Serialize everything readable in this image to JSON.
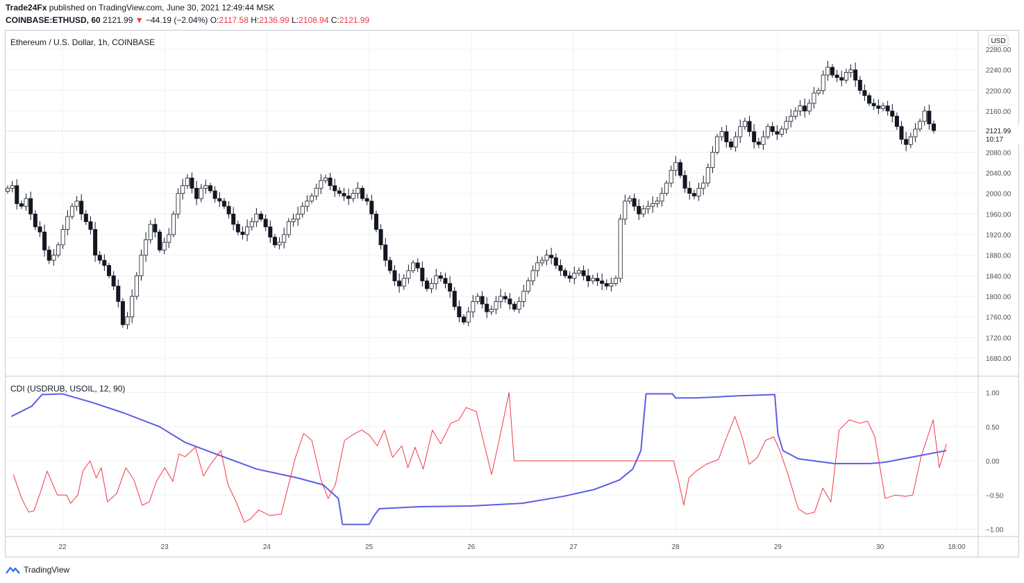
{
  "header": {
    "author": "Trade24Fx",
    "published_text": " published on TradingView.com, June 30, 2021 12:49:44 MSK",
    "symbol": "COINBASE:ETHUSD, 60",
    "last": "2121.99",
    "down_arrow": "▼",
    "change": "−44.19 (−2.04%)",
    "o_label": "O:",
    "o_value": "2117.58",
    "h_label": "H:",
    "h_value": "2136.99",
    "l_label": "L:",
    "l_value": "2108.94",
    "c_label": "C:",
    "c_value": "2121.99"
  },
  "price_pane": {
    "legend": "Ethereum / U.S. Dollar, 1h, COINBASE",
    "currency_badge": "USD",
    "last_price_label": "2121.99",
    "countdown": "10:17"
  },
  "indicator_pane": {
    "legend": "CDI (USDRUB, USOIL, 12, 90)"
  },
  "footer": {
    "brand": "TradingView"
  },
  "colors": {
    "up_candle": "#ffffff",
    "down_candle": "#131722",
    "cdi_slow": "#5b5ce6",
    "cdi_fast": "#f23645",
    "grid": "#eef0f4",
    "axis_text": "#4a4e59"
  },
  "chart_data": [
    {
      "type": "candlestick",
      "title": "Ethereum / U.S. Dollar, 1h, COINBASE",
      "y_unit": "USD",
      "ylim": [
        1650,
        2290
      ],
      "y_ticks": [
        1680,
        1720,
        1760,
        1800,
        1840,
        1880,
        1920,
        1960,
        2000,
        2040,
        2080,
        2120,
        2160,
        2200,
        2240,
        2280
      ],
      "x_ticks": [
        "22",
        "23",
        "24",
        "25",
        "26",
        "27",
        "28",
        "29",
        "30",
        "18:00"
      ],
      "close_path_hourly": [
        2010,
        2015,
        1980,
        1975,
        1990,
        1960,
        1935,
        1925,
        1890,
        1870,
        1880,
        1900,
        1930,
        1955,
        1975,
        1985,
        1960,
        1945,
        1930,
        1880,
        1870,
        1860,
        1840,
        1820,
        1790,
        1745,
        1760,
        1800,
        1840,
        1880,
        1910,
        1940,
        1925,
        1890,
        1905,
        1920,
        1960,
        2000,
        2015,
        2030,
        2010,
        1990,
        2010,
        2015,
        2005,
        1990,
        1985,
        1975,
        1960,
        1940,
        1925,
        1920,
        1935,
        1945,
        1960,
        1950,
        1935,
        1915,
        1900,
        1905,
        1920,
        1945,
        1950,
        1960,
        1975,
        1985,
        1995,
        2010,
        2025,
        2030,
        2015,
        2005,
        2000,
        1995,
        1990,
        2000,
        2010,
        1990,
        1985,
        1960,
        1930,
        1900,
        1870,
        1850,
        1830,
        1820,
        1835,
        1850,
        1865,
        1855,
        1830,
        1815,
        1825,
        1840,
        1835,
        1825,
        1810,
        1780,
        1760,
        1750,
        1770,
        1790,
        1800,
        1785,
        1770,
        1775,
        1790,
        1800,
        1795,
        1785,
        1775,
        1790,
        1810,
        1830,
        1850,
        1865,
        1870,
        1880,
        1875,
        1860,
        1850,
        1840,
        1835,
        1845,
        1850,
        1840,
        1830,
        1835,
        1830,
        1825,
        1820,
        1825,
        1835,
        1950,
        1985,
        1990,
        1975,
        1960,
        1970,
        1975,
        1980,
        1985,
        2000,
        2020,
        2045,
        2060,
        2035,
        2010,
        2000,
        1995,
        2010,
        2020,
        2050,
        2080,
        2110,
        2120,
        2100,
        2090,
        2110,
        2130,
        2140,
        2120,
        2100,
        2095,
        2110,
        2130,
        2120,
        2115,
        2125,
        2140,
        2150,
        2160,
        2170,
        2160,
        2175,
        2195,
        2200,
        2230,
        2245,
        2230,
        2225,
        2220,
        2235,
        2240,
        2220,
        2200,
        2190,
        2175,
        2170,
        2165,
        2170,
        2160,
        2150,
        2130,
        2105,
        2095,
        2110,
        2125,
        2140,
        2160,
        2135,
        2121.99
      ],
      "last": 2121.99
    },
    {
      "type": "line",
      "title": "CDI (USDRUB, USOIL, 12, 90)",
      "ylim": [
        -1.1,
        1.1
      ],
      "y_ticks": [
        1.0,
        0.5,
        0.0,
        -0.5,
        -1.0
      ],
      "y_tick_labels": [
        "1.00",
        "0.50",
        "0.00",
        "−0.50",
        "−1.00"
      ],
      "x_ticks": [
        "22",
        "23",
        "24",
        "25",
        "26",
        "27",
        "28",
        "29",
        "30",
        "18:00"
      ],
      "series": [
        {
          "color": "#5b5ce6",
          "points": [
            [
              21.5,
              0.65
            ],
            [
              21.7,
              0.8
            ],
            [
              21.8,
              0.97
            ],
            [
              22.0,
              0.98
            ],
            [
              22.3,
              0.85
            ],
            [
              22.6,
              0.7
            ],
            [
              22.95,
              0.5
            ],
            [
              23.2,
              0.27
            ],
            [
              23.5,
              0.1
            ],
            [
              23.9,
              -0.12
            ],
            [
              24.3,
              -0.25
            ],
            [
              24.55,
              -0.35
            ],
            [
              24.7,
              -0.55
            ],
            [
              24.74,
              -0.93
            ],
            [
              25.0,
              -0.93
            ],
            [
              25.05,
              -0.8
            ],
            [
              25.1,
              -0.7
            ],
            [
              25.5,
              -0.67
            ],
            [
              26.0,
              -0.66
            ],
            [
              26.5,
              -0.62
            ],
            [
              26.9,
              -0.52
            ],
            [
              27.2,
              -0.42
            ],
            [
              27.45,
              -0.28
            ],
            [
              27.58,
              -0.12
            ],
            [
              27.66,
              0.15
            ],
            [
              27.71,
              0.98
            ],
            [
              27.97,
              0.98
            ],
            [
              28.0,
              0.92
            ],
            [
              28.2,
              0.92
            ],
            [
              28.6,
              0.95
            ],
            [
              28.97,
              0.97
            ],
            [
              29.0,
              0.4
            ],
            [
              29.05,
              0.15
            ],
            [
              29.2,
              0.03
            ],
            [
              29.55,
              -0.04
            ],
            [
              29.9,
              -0.04
            ],
            [
              30.05,
              -0.02
            ],
            [
              30.4,
              0.08
            ],
            [
              30.65,
              0.15
            ]
          ]
        },
        {
          "color": "#f23645",
          "points": [
            [
              21.52,
              -0.2
            ],
            [
              21.6,
              -0.55
            ],
            [
              21.67,
              -0.75
            ],
            [
              21.72,
              -0.73
            ],
            [
              21.78,
              -0.48
            ],
            [
              21.85,
              -0.15
            ],
            [
              21.95,
              -0.5
            ],
            [
              22.04,
              -0.5
            ],
            [
              22.08,
              -0.62
            ],
            [
              22.15,
              -0.5
            ],
            [
              22.2,
              -0.15
            ],
            [
              22.27,
              0.0
            ],
            [
              22.33,
              -0.25
            ],
            [
              22.38,
              -0.1
            ],
            [
              22.44,
              -0.6
            ],
            [
              22.53,
              -0.48
            ],
            [
              22.62,
              -0.1
            ],
            [
              22.7,
              -0.28
            ],
            [
              22.78,
              -0.65
            ],
            [
              22.85,
              -0.6
            ],
            [
              22.92,
              -0.3
            ],
            [
              23.0,
              -0.1
            ],
            [
              23.08,
              -0.3
            ],
            [
              23.14,
              0.1
            ],
            [
              23.2,
              0.06
            ],
            [
              23.3,
              0.2
            ],
            [
              23.38,
              -0.22
            ],
            [
              23.45,
              -0.05
            ],
            [
              23.55,
              0.15
            ],
            [
              23.62,
              -0.35
            ],
            [
              23.7,
              -0.6
            ],
            [
              23.78,
              -0.9
            ],
            [
              23.84,
              -0.85
            ],
            [
              23.92,
              -0.72
            ],
            [
              24.03,
              -0.8
            ],
            [
              24.14,
              -0.78
            ],
            [
              24.28,
              0.05
            ],
            [
              24.36,
              0.4
            ],
            [
              24.44,
              0.3
            ],
            [
              24.53,
              -0.28
            ],
            [
              24.6,
              -0.55
            ],
            [
              24.67,
              -0.35
            ],
            [
              24.76,
              0.3
            ],
            [
              24.86,
              0.4
            ],
            [
              24.93,
              0.45
            ],
            [
              25.0,
              0.38
            ],
            [
              25.08,
              0.22
            ],
            [
              25.15,
              0.45
            ],
            [
              25.23,
              0.05
            ],
            [
              25.32,
              0.22
            ],
            [
              25.38,
              -0.1
            ],
            [
              25.45,
              0.2
            ],
            [
              25.53,
              -0.12
            ],
            [
              25.62,
              0.45
            ],
            [
              25.7,
              0.25
            ],
            [
              25.8,
              0.55
            ],
            [
              25.88,
              0.6
            ],
            [
              25.95,
              0.78
            ],
            [
              26.05,
              0.72
            ],
            [
              26.12,
              0.28
            ],
            [
              26.2,
              -0.2
            ],
            [
              26.28,
              0.35
            ],
            [
              26.37,
              1.0
            ],
            [
              26.42,
              0.0
            ],
            [
              27.0,
              0.0
            ],
            [
              27.6,
              0.0
            ],
            [
              27.98,
              0.0
            ],
            [
              28.03,
              -0.3
            ],
            [
              28.08,
              -0.65
            ],
            [
              28.13,
              -0.25
            ],
            [
              28.2,
              -0.15
            ],
            [
              28.3,
              -0.05
            ],
            [
              28.42,
              0.02
            ],
            [
              28.5,
              0.35
            ],
            [
              28.58,
              0.65
            ],
            [
              28.65,
              0.35
            ],
            [
              28.72,
              -0.05
            ],
            [
              28.8,
              0.05
            ],
            [
              28.88,
              0.3
            ],
            [
              28.96,
              0.35
            ],
            [
              29.02,
              0.15
            ],
            [
              29.1,
              -0.2
            ],
            [
              29.2,
              -0.7
            ],
            [
              29.28,
              -0.78
            ],
            [
              29.36,
              -0.75
            ],
            [
              29.44,
              -0.4
            ],
            [
              29.52,
              -0.6
            ],
            [
              29.6,
              0.45
            ],
            [
              29.7,
              0.6
            ],
            [
              29.8,
              0.55
            ],
            [
              29.88,
              0.58
            ],
            [
              29.95,
              0.35
            ],
            [
              30.05,
              -0.55
            ],
            [
              30.15,
              -0.5
            ],
            [
              30.25,
              -0.52
            ],
            [
              30.32,
              -0.5
            ],
            [
              30.4,
              0.05
            ],
            [
              30.52,
              0.6
            ],
            [
              30.58,
              -0.1
            ],
            [
              30.65,
              0.25
            ]
          ]
        }
      ]
    }
  ]
}
